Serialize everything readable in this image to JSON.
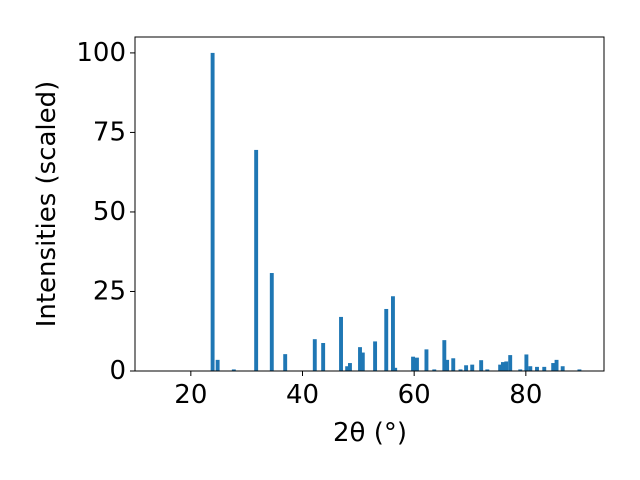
{
  "chart_data": {
    "type": "bar",
    "x_label": "2θ (°)",
    "y_label": "Intensities (scaled)",
    "x": [
      23.9,
      24.8,
      27.7,
      31.7,
      34.5,
      36.9,
      42.2,
      43.7,
      46.9,
      48.0,
      48.5,
      50.3,
      50.8,
      53.0,
      55.0,
      56.2,
      56.6,
      59.8,
      60.5,
      62.2,
      63.6,
      65.4,
      65.9,
      67.0,
      68.3,
      69.3,
      70.4,
      72.0,
      73.1,
      75.4,
      75.9,
      76.5,
      77.2,
      79.0,
      80.1,
      80.8,
      82.0,
      83.3,
      84.9,
      85.5,
      86.6,
      89.6
    ],
    "values": [
      100,
      3.5,
      0.5,
      69.5,
      30.8,
      5.3,
      10,
      8.8,
      17,
      1.5,
      2.5,
      7.5,
      5.8,
      9.3,
      19.5,
      23.5,
      1,
      4.5,
      4.2,
      6.8,
      0.5,
      9.7,
      3.5,
      4,
      0.5,
      1.8,
      2,
      3.4,
      0.5,
      2,
      2.8,
      3,
      5,
      0.5,
      5.2,
      1.5,
      1.3,
      1.3,
      2.5,
      3.5,
      1.5,
      0.5
    ],
    "color": "#1f77b4",
    "xlim": [
      10,
      94
    ],
    "xticks": [
      20,
      40,
      60,
      80
    ],
    "ylim": [
      0,
      105
    ],
    "yticks": [
      0,
      25,
      50,
      75,
      100
    ],
    "grid": false
  }
}
